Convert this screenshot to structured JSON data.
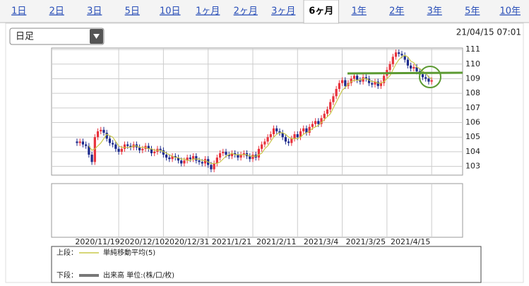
{
  "tabs": [
    "1日",
    "2日",
    "3日",
    "5日",
    "10日",
    "1ヶ月",
    "2ヶ月",
    "3ヶ月",
    "6ヶ月",
    "1年",
    "2年",
    "3年",
    "5年",
    "10年"
  ],
  "active_tab": 8,
  "selector": "日足",
  "timestamp": "21/04/15 07:01",
  "legend": {
    "upper_label": "上段：",
    "upper_name": "単純移動平均(5)",
    "lower_label": "下段：",
    "lower_name": "出来高 単位:(株/口/枚)"
  },
  "chart_data": {
    "type": "candlestick",
    "categories": [
      null,
      null,
      null,
      null,
      null,
      null,
      null,
      null,
      null,
      null,
      null,
      null,
      null,
      null,
      "2020/11/19",
      null,
      null,
      null,
      null,
      null,
      null,
      null,
      null,
      null,
      null,
      null,
      null,
      null,
      null,
      "2020/12/10",
      null,
      null,
      null,
      null,
      null,
      null,
      null,
      null,
      null,
      null,
      null,
      null,
      null,
      null,
      "2020/12/31",
      null,
      null,
      null,
      null,
      null,
      null,
      null,
      null,
      null,
      null,
      null,
      null,
      null,
      null,
      "2021/1/21",
      null,
      null,
      null,
      null,
      null,
      null,
      null,
      null,
      null,
      null,
      null,
      null,
      null,
      null,
      "2021/2/11",
      null,
      null,
      null,
      null,
      null,
      null,
      null,
      null,
      null,
      null,
      null,
      null,
      null,
      null,
      "2021/3/4",
      null,
      null,
      null,
      null,
      null,
      null,
      null,
      null,
      null,
      null,
      null,
      null,
      null,
      null,
      "2021/3/25",
      null,
      null,
      null,
      null,
      null,
      null,
      null,
      null,
      null,
      null,
      null,
      null,
      null,
      null,
      "2021/4/15"
    ],
    "open": [
      104.7,
      104.6,
      104.7,
      104.5,
      104.4,
      103.8,
      103.3,
      105.0,
      105.4,
      105.5,
      105.3,
      104.9,
      104.6,
      104.5,
      104.2,
      104.0,
      104.2,
      104.5,
      104.4,
      104.3,
      104.5,
      104.3,
      104.1,
      104.2,
      104.4,
      104.2,
      103.9,
      104.0,
      104.2,
      104.1,
      103.8,
      103.6,
      103.5,
      103.7,
      103.6,
      103.4,
      103.2,
      103.4,
      103.6,
      103.5,
      103.7,
      103.4,
      103.3,
      103.2,
      103.5,
      103.1,
      102.8,
      103.2,
      103.6,
      103.9,
      104.0,
      103.8,
      103.7,
      103.9,
      103.8,
      103.6,
      103.8,
      103.9,
      103.7,
      103.5,
      103.8,
      103.6,
      104.2,
      104.5,
      104.7,
      105.0,
      105.2,
      105.6,
      105.4,
      105.3,
      105.0,
      104.7,
      104.6,
      104.9,
      105.2,
      105.0,
      105.4,
      105.6,
      105.3,
      105.7,
      105.9,
      106.1,
      105.9,
      106.3,
      106.6,
      106.9,
      107.4,
      107.8,
      108.3,
      108.7,
      108.9,
      108.5,
      108.7,
      109.0,
      109.2,
      108.9,
      108.8,
      109.1,
      109.0,
      108.7,
      108.6,
      108.8,
      108.5,
      108.7,
      109.2,
      109.6,
      110.0,
      110.5,
      110.8,
      110.7,
      110.6,
      110.3,
      109.9,
      109.7,
      109.8,
      109.5,
      109.3,
      109.1,
      109.0,
      108.8
    ],
    "high": [
      104.9,
      104.9,
      104.9,
      104.7,
      104.6,
      104.0,
      105.2,
      105.6,
      105.7,
      105.7,
      105.5,
      105.1,
      104.8,
      104.7,
      104.4,
      104.4,
      104.7,
      104.7,
      104.6,
      104.7,
      104.7,
      104.5,
      104.4,
      104.6,
      104.6,
      104.4,
      104.2,
      104.4,
      104.4,
      104.3,
      104.0,
      103.8,
      103.9,
      103.9,
      103.8,
      103.6,
      103.6,
      103.8,
      103.8,
      103.9,
      103.9,
      103.6,
      103.5,
      103.7,
      103.7,
      103.3,
      103.4,
      103.8,
      104.1,
      104.2,
      104.2,
      104.0,
      104.1,
      104.1,
      104.0,
      104.0,
      104.1,
      104.1,
      103.9,
      104.0,
      104.0,
      104.4,
      104.7,
      104.9,
      105.2,
      105.4,
      105.8,
      105.8,
      105.6,
      105.5,
      105.2,
      104.9,
      105.1,
      105.4,
      105.4,
      105.6,
      105.8,
      105.8,
      105.9,
      106.1,
      106.3,
      106.3,
      106.5,
      106.8,
      107.1,
      107.6,
      108.0,
      108.5,
      108.9,
      109.1,
      109.1,
      108.9,
      109.2,
      109.4,
      109.4,
      109.1,
      109.3,
      109.3,
      109.2,
      108.9,
      109.0,
      109.0,
      108.9,
      109.4,
      109.8,
      110.2,
      110.7,
      111.0,
      111.0,
      110.9,
      110.8,
      110.5,
      110.1,
      110.0,
      110.0,
      109.7,
      109.5,
      109.3,
      109.2,
      109.1
    ],
    "low": [
      104.4,
      104.4,
      104.3,
      104.2,
      103.6,
      103.1,
      103.1,
      104.8,
      105.2,
      105.1,
      104.7,
      104.4,
      104.3,
      104.0,
      103.8,
      103.8,
      104.0,
      104.2,
      104.1,
      104.1,
      104.1,
      103.9,
      103.9,
      104.0,
      104.0,
      103.7,
      103.7,
      103.8,
      103.9,
      103.6,
      103.4,
      103.3,
      103.3,
      103.4,
      103.2,
      103.0,
      103.0,
      103.2,
      103.3,
      103.3,
      103.2,
      103.1,
      103.0,
      103.0,
      102.9,
      102.6,
      102.6,
      103.0,
      103.4,
      103.7,
      103.6,
      103.5,
      103.5,
      103.6,
      103.4,
      103.4,
      103.6,
      103.5,
      103.3,
      103.3,
      103.4,
      103.4,
      104.0,
      104.3,
      104.5,
      104.8,
      105.0,
      105.2,
      105.1,
      104.8,
      104.5,
      104.4,
      104.4,
      104.7,
      104.8,
      104.8,
      105.2,
      105.1,
      105.1,
      105.5,
      105.7,
      105.7,
      105.7,
      106.1,
      106.4,
      106.7,
      107.2,
      107.6,
      108.1,
      108.5,
      108.3,
      108.3,
      108.5,
      108.8,
      108.7,
      108.6,
      108.6,
      108.8,
      108.5,
      108.4,
      108.4,
      108.3,
      108.3,
      108.5,
      109.0,
      109.4,
      109.8,
      110.3,
      110.5,
      110.4,
      110.1,
      109.7,
      109.5,
      109.5,
      109.3,
      109.1,
      108.9,
      108.8,
      108.6,
      108.6
    ],
    "close": [
      104.6,
      104.7,
      104.5,
      104.4,
      103.8,
      103.3,
      105.0,
      105.4,
      105.5,
      105.3,
      104.9,
      104.6,
      104.5,
      104.2,
      104.0,
      104.2,
      104.5,
      104.4,
      104.3,
      104.5,
      104.3,
      104.1,
      104.2,
      104.4,
      104.2,
      103.9,
      104.0,
      104.2,
      104.1,
      103.8,
      103.6,
      103.5,
      103.7,
      103.6,
      103.4,
      103.2,
      103.4,
      103.6,
      103.5,
      103.7,
      103.4,
      103.3,
      103.2,
      103.5,
      103.1,
      102.8,
      103.2,
      103.6,
      103.9,
      104.0,
      103.8,
      103.7,
      103.9,
      103.8,
      103.6,
      103.8,
      103.9,
      103.7,
      103.5,
      103.8,
      103.6,
      104.2,
      104.5,
      104.7,
      105.0,
      105.2,
      105.6,
      105.4,
      105.3,
      105.0,
      104.7,
      104.6,
      104.9,
      105.2,
      105.0,
      105.4,
      105.6,
      105.3,
      105.7,
      105.9,
      106.1,
      105.9,
      106.3,
      106.6,
      106.9,
      107.4,
      107.8,
      108.3,
      108.7,
      108.9,
      108.5,
      108.7,
      109.0,
      109.2,
      108.9,
      108.8,
      109.1,
      109.0,
      108.7,
      108.6,
      108.8,
      108.5,
      108.7,
      109.2,
      109.6,
      110.0,
      110.5,
      110.8,
      110.7,
      110.6,
      110.3,
      109.9,
      109.7,
      109.8,
      109.5,
      109.3,
      109.1,
      109.0,
      108.8,
      108.9
    ],
    "ma": [
      null,
      null,
      null,
      null,
      104.4,
      104.1,
      104.2,
      104.4,
      104.6,
      104.9,
      105.2,
      105.1,
      105.0,
      104.7,
      104.4,
      104.3,
      104.3,
      104.3,
      104.3,
      104.4,
      104.4,
      104.3,
      104.3,
      104.3,
      104.2,
      104.2,
      104.1,
      104.1,
      104.1,
      104.0,
      103.9,
      103.8,
      103.7,
      103.6,
      103.6,
      103.5,
      103.5,
      103.4,
      103.4,
      103.5,
      103.5,
      103.5,
      103.4,
      103.4,
      103.3,
      103.2,
      103.2,
      103.2,
      103.3,
      103.5,
      103.7,
      103.8,
      103.9,
      103.8,
      103.8,
      103.8,
      103.8,
      103.8,
      103.7,
      103.7,
      103.7,
      103.8,
      103.9,
      104.2,
      104.4,
      104.7,
      105.0,
      105.2,
      105.3,
      105.3,
      105.2,
      105.0,
      104.9,
      104.9,
      104.9,
      105.0,
      105.2,
      105.3,
      105.4,
      105.6,
      105.7,
      105.8,
      106.0,
      106.2,
      106.4,
      106.6,
      107.0,
      107.4,
      107.8,
      108.2,
      108.4,
      108.6,
      108.8,
      108.9,
      108.9,
      108.9,
      109.0,
      109.0,
      108.9,
      108.8,
      108.8,
      108.7,
      108.7,
      108.8,
      109.0,
      109.2,
      109.6,
      110.0,
      110.3,
      110.5,
      110.6,
      110.5,
      110.2,
      110.1,
      109.8,
      109.7,
      109.5,
      109.4,
      109.1,
      109.0
    ],
    "up_color": "#e8323c",
    "down_color": "#1c2a8c",
    "ma_color": "#c9c84a",
    "ylim": [
      102.4,
      111.1
    ],
    "yticks": [
      103,
      104,
      105,
      106,
      107,
      108,
      109,
      110,
      111
    ],
    "grid": true
  }
}
